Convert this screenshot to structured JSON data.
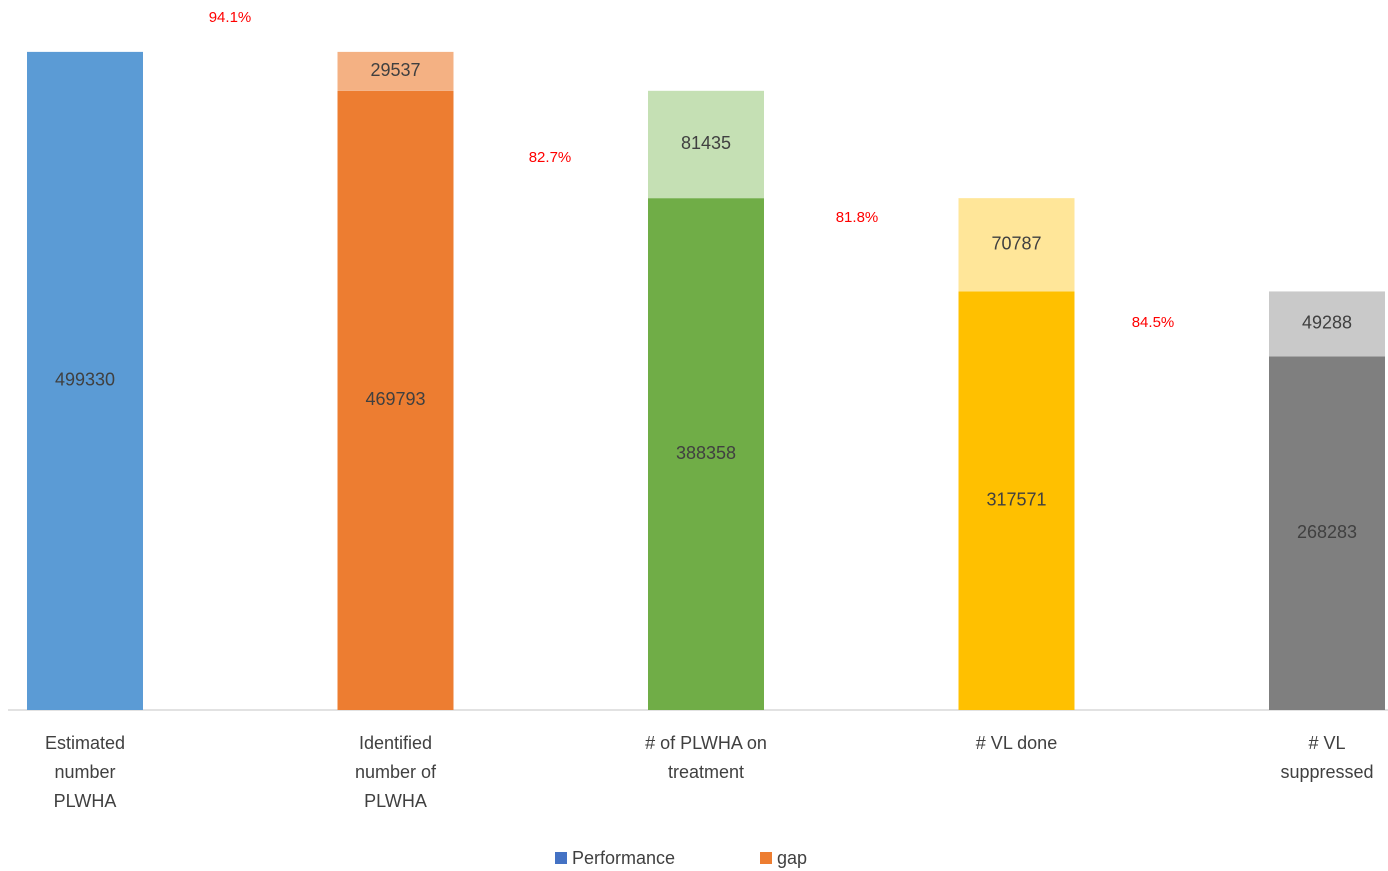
{
  "chart_data": {
    "type": "stacked_bar",
    "categories": [
      [
        "Estimated",
        "number",
        "PLWHA"
      ],
      [
        "Identified",
        "number of",
        "PLWHA"
      ],
      [
        "# of PLWHA on",
        "treatment"
      ],
      [
        "# VL done"
      ],
      [
        "# VL",
        "suppressed"
      ]
    ],
    "series": [
      {
        "name": "Performance",
        "color": "#4472c4",
        "colors": [
          "#5b9bd5",
          "#ed7d31",
          "#70ad47",
          "#ffc000",
          "#7f7f7f"
        ],
        "values": [
          499330,
          469793,
          388358,
          317571,
          268283
        ]
      },
      {
        "name": "gap",
        "color": "#ed7d31",
        "colors": [
          null,
          "#f4b183",
          "#c5e0b4",
          "#ffe699",
          "#c9c9c9"
        ],
        "values": [
          null,
          29537,
          81435,
          70787,
          49288
        ]
      }
    ],
    "annotations": [
      "94.1%",
      "82.7%",
      "81.8%",
      "84.5%"
    ],
    "annotation_color": "#ff0000",
    "ylim": [
      0,
      500000
    ],
    "legend": "bottom"
  }
}
